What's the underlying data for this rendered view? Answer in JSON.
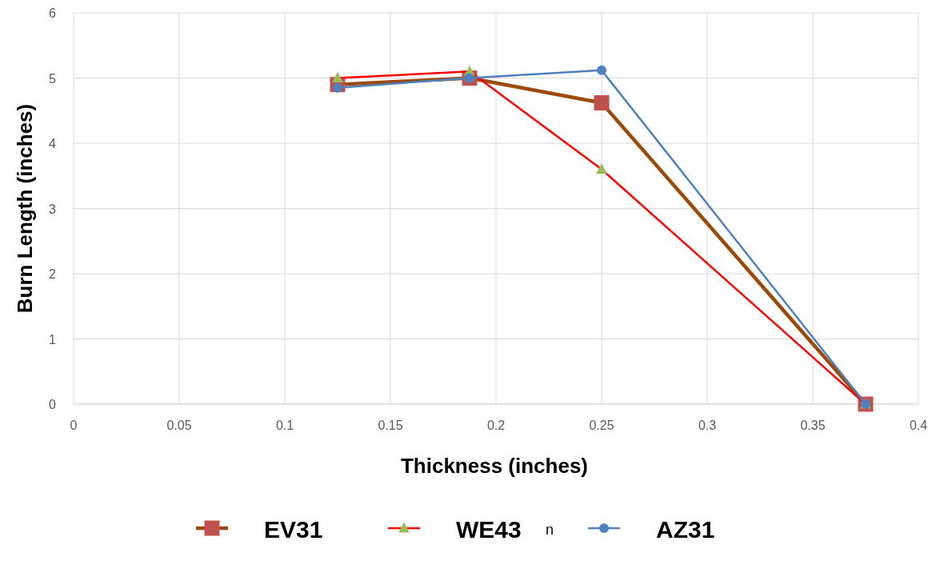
{
  "chart_data": {
    "type": "line",
    "xlabel": "Thickness (inches)",
    "ylabel": "Burn Length (inches)",
    "x": [
      0.125,
      0.1875,
      0.25,
      0.375
    ],
    "xlim": [
      0,
      0.4
    ],
    "xticks": [
      0,
      0.05,
      0.1,
      0.15,
      0.2,
      0.25,
      0.3,
      0.35,
      0.4
    ],
    "ylim": [
      0,
      6
    ],
    "yticks": [
      0,
      1,
      2,
      3,
      4,
      5,
      6
    ],
    "grid": true,
    "legend": "bottom",
    "annotations": [
      "n"
    ],
    "series": [
      {
        "name": "EV31",
        "color": "#9c4a0c",
        "colors": [
          "#c0504d",
          "#c0504d",
          "#c0504d",
          "#c0504d"
        ],
        "marker": "square",
        "values": [
          4.9,
          5.0,
          4.62,
          0
        ]
      },
      {
        "name": "WE43",
        "color": "#ff0000",
        "colors": [
          "#9bbb59",
          "#9bbb59",
          "#9bbb59",
          "#9bbb59"
        ],
        "marker": "triangle",
        "values": [
          5.0,
          5.1,
          3.6,
          0
        ]
      },
      {
        "name": "AZ31",
        "color": "#4f81bd",
        "colors": [
          "#4f81bd",
          "#4f81bd",
          "#4f81bd",
          "#4f81bd"
        ],
        "marker": "circle",
        "values": [
          4.85,
          5.0,
          5.12,
          0
        ]
      }
    ]
  }
}
